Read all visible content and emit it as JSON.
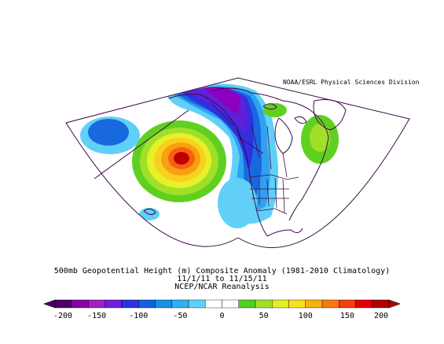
{
  "credit": "NOAA/ESRL Physical Sciences Division",
  "title": {
    "line1": "500mb Geopotential Height (m) Composite Anomaly (1981-2010 Climatology)",
    "line2": "11/1/11 to 11/15/11",
    "line3": "NCEP/NCAR Reanalysis"
  },
  "colorbar": {
    "ticks": [
      "-200",
      "-150",
      "-100",
      "-50",
      "0",
      "50",
      "100",
      "150",
      "200"
    ],
    "colors": [
      "#4b0068",
      "#8c00a8",
      "#a020c8",
      "#7020d8",
      "#3030e0",
      "#1060e0",
      "#1890e8",
      "#30b0f0",
      "#60d0f8",
      "#ffffff",
      "#ffffff",
      "#50d020",
      "#a0e028",
      "#e0f028",
      "#f8e020",
      "#f8b010",
      "#f87810",
      "#f04010",
      "#e00000",
      "#b00000"
    ]
  },
  "map_colors": {
    "outline": "#3c0a46",
    "neg_200": "#6a00a0",
    "neg_150": "#8c00c0",
    "neg_100": "#6020d8",
    "neg_75": "#3030e0",
    "neg_50": "#1868e0",
    "neg_25": "#30a0f0",
    "neg_10": "#60d0f8",
    "pos_10": "#60d020",
    "pos_25": "#a0e028",
    "pos_50": "#e8f028",
    "pos_75": "#f8d020",
    "pos_100": "#f8a010",
    "pos_125": "#f86010",
    "pos_150": "#e02000",
    "pos_200": "#c00000"
  }
}
